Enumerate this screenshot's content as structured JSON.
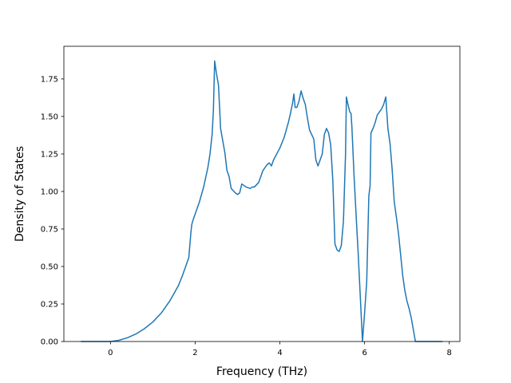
{
  "chart_data": {
    "type": "line",
    "title": "",
    "xlabel": "Frequency (THz)",
    "ylabel": "Density of States",
    "xlim": [
      -1.1,
      8.25
    ],
    "ylim": [
      0.0,
      1.9677
    ],
    "grid": false,
    "legend": "none",
    "xticks": [
      0,
      2,
      4,
      6,
      8
    ],
    "xtick_labels": [
      "0",
      "2",
      "4",
      "6",
      "8"
    ],
    "yticks": [
      0.0,
      0.25,
      0.5,
      0.75,
      1.0,
      1.25,
      1.5,
      1.75
    ],
    "ytick_labels": [
      "0.00",
      "0.25",
      "0.50",
      "0.75",
      "1.00",
      "1.25",
      "1.50",
      "1.75"
    ],
    "colors": {
      "line": "#1f77b4",
      "axis": "#000000"
    },
    "series": [
      {
        "x": [
          -0.7,
          0.0,
          0.2,
          0.4,
          0.6,
          0.8,
          1.0,
          1.2,
          1.4,
          1.6,
          1.7,
          1.8,
          1.85,
          1.9,
          1.92,
          1.95,
          2.0,
          2.1,
          2.2,
          2.3,
          2.35,
          2.4,
          2.43,
          2.46,
          2.5,
          2.55,
          2.6,
          2.65,
          2.7,
          2.75,
          2.8,
          2.85,
          2.95,
          3.0,
          3.05,
          3.1,
          3.15,
          3.2,
          3.3,
          3.35,
          3.4,
          3.5,
          3.6,
          3.7,
          3.75,
          3.8,
          3.85,
          4.0,
          4.1,
          4.2,
          4.25,
          4.3,
          4.33,
          4.36,
          4.4,
          4.45,
          4.5,
          4.55,
          4.6,
          4.65,
          4.7,
          4.75,
          4.8,
          4.85,
          4.9,
          5.0,
          5.05,
          5.1,
          5.15,
          5.2,
          5.25,
          5.3,
          5.35,
          5.4,
          5.45,
          5.5,
          5.55,
          5.57,
          5.6,
          5.65,
          5.68,
          5.7,
          5.75,
          5.8,
          5.85,
          5.9,
          5.95,
          6.0,
          6.05,
          6.1,
          6.13,
          6.15,
          6.2,
          6.25,
          6.3,
          6.35,
          6.4,
          6.45,
          6.5,
          6.55,
          6.6,
          6.65,
          6.7,
          6.75,
          6.8,
          6.85,
          6.9,
          6.95,
          7.0,
          7.05,
          7.1,
          7.15,
          7.2,
          7.84
        ],
        "y": [
          0.0,
          0.0,
          0.008,
          0.025,
          0.05,
          0.085,
          0.13,
          0.19,
          0.27,
          0.37,
          0.44,
          0.52,
          0.56,
          0.73,
          0.78,
          0.81,
          0.85,
          0.93,
          1.03,
          1.16,
          1.25,
          1.38,
          1.54,
          1.87,
          1.79,
          1.71,
          1.42,
          1.34,
          1.26,
          1.14,
          1.1,
          1.02,
          0.99,
          0.98,
          0.99,
          1.05,
          1.04,
          1.03,
          1.02,
          1.03,
          1.03,
          1.06,
          1.14,
          1.18,
          1.19,
          1.17,
          1.21,
          1.29,
          1.36,
          1.46,
          1.52,
          1.59,
          1.65,
          1.56,
          1.56,
          1.6,
          1.67,
          1.62,
          1.58,
          1.49,
          1.41,
          1.38,
          1.35,
          1.21,
          1.17,
          1.25,
          1.38,
          1.42,
          1.39,
          1.31,
          1.07,
          0.65,
          0.61,
          0.6,
          0.64,
          0.8,
          1.25,
          1.63,
          1.59,
          1.53,
          1.52,
          1.43,
          1.11,
          0.84,
          0.58,
          0.29,
          0.0,
          0.19,
          0.4,
          0.97,
          1.04,
          1.39,
          1.42,
          1.46,
          1.51,
          1.53,
          1.55,
          1.58,
          1.63,
          1.42,
          1.32,
          1.15,
          0.93,
          0.83,
          0.72,
          0.58,
          0.44,
          0.34,
          0.27,
          0.22,
          0.16,
          0.08,
          0.0,
          0.0
        ]
      }
    ]
  }
}
